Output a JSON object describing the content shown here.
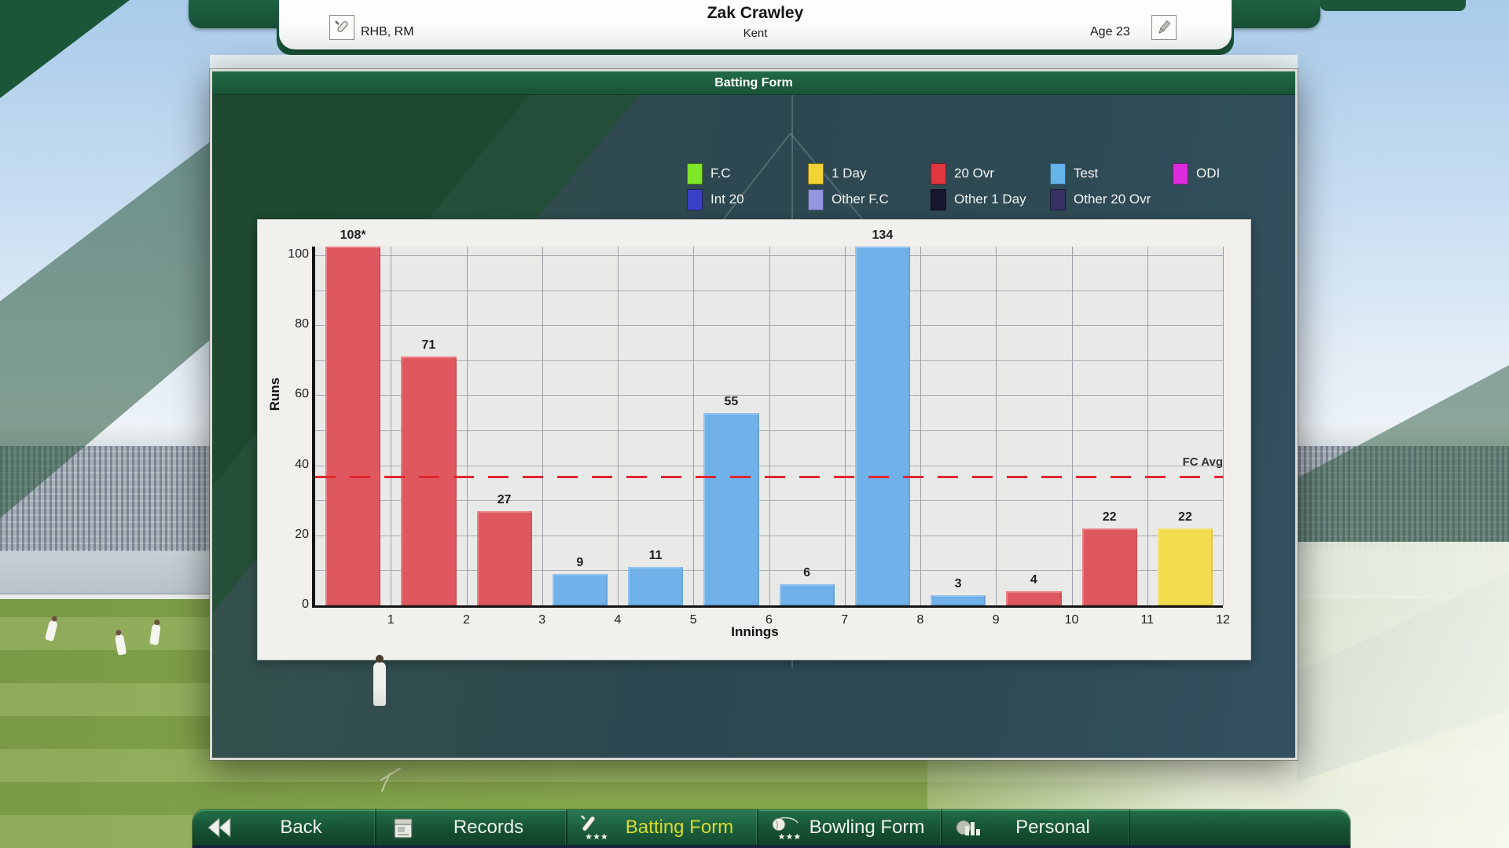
{
  "header": {
    "name": "Zak Crawley",
    "role": "RHB, RM",
    "team": "Kent",
    "age": "Age 23"
  },
  "dialog": {
    "title": "Batting Form"
  },
  "legend": {
    "rows": [
      [
        {
          "label": "F.C",
          "color": "#7fe628"
        },
        {
          "label": "1 Day",
          "color": "#f2d235"
        },
        {
          "label": "20 Ovr",
          "color": "#e23640"
        },
        {
          "label": "Test",
          "color": "#66b4ec"
        },
        {
          "label": "ODI",
          "color": "#dd2bdd"
        }
      ],
      [
        {
          "label": "Int 20",
          "color": "#3a41c8"
        },
        {
          "label": "Other F.C",
          "color": "#9297df"
        },
        {
          "label": "Other 1 Day",
          "color": "#16162f"
        },
        {
          "label": "Other 20 Ovr",
          "color": "#363163"
        }
      ]
    ]
  },
  "chart_data": {
    "type": "bar",
    "title": "Batting Form",
    "xlabel": "Innings",
    "ylabel": "Runs",
    "x": [
      1,
      2,
      3,
      4,
      5,
      6,
      7,
      8,
      9,
      10,
      11,
      12
    ],
    "values": [
      108,
      71,
      27,
      9,
      11,
      55,
      6,
      134,
      3,
      4,
      22,
      22
    ],
    "bar_labels": [
      "108*",
      "71",
      "27",
      "9",
      "11",
      "55",
      "6",
      "134",
      "3",
      "4",
      "22",
      "22"
    ],
    "categories_per_bar": [
      "20 Ovr",
      "20 Ovr",
      "20 Ovr",
      "Test",
      "Test",
      "Test",
      "Test",
      "Test",
      "Test",
      "20 Ovr",
      "20 Ovr",
      "1 Day"
    ],
    "series": [
      {
        "name": "20 Ovr",
        "color": "#e0585f"
      },
      {
        "name": "Test",
        "color": "#70b1e9"
      },
      {
        "name": "1 Day",
        "color": "#f2db4d"
      }
    ],
    "ylim": [
      0,
      100
    ],
    "yticks": [
      0,
      20,
      40,
      60,
      80,
      100
    ],
    "grid_step": 10,
    "grid": true,
    "legend_position": "top",
    "reference_line": {
      "label": "FC Avg",
      "value": 37,
      "style": "dashed",
      "color": "#e02630"
    }
  },
  "nav": {
    "items": [
      {
        "label": "Back"
      },
      {
        "label": "Records"
      },
      {
        "label": "Batting Form",
        "active": true
      },
      {
        "label": "Bowling Form"
      },
      {
        "label": "Personal"
      }
    ],
    "active_text_color": "#d9dc2c"
  }
}
